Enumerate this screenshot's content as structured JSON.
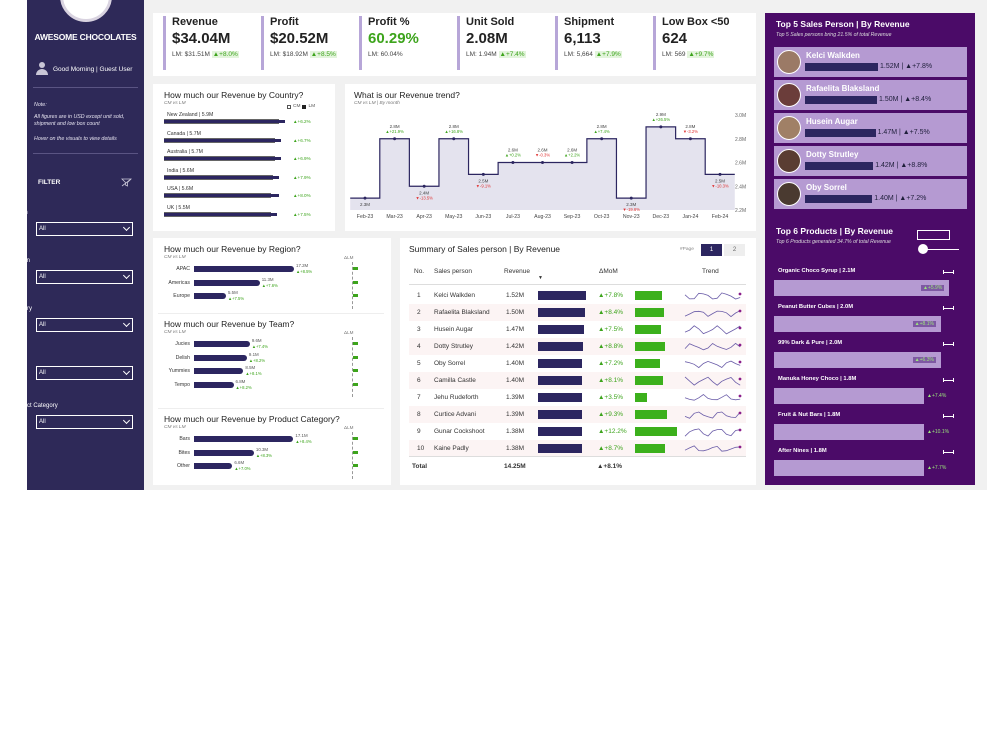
{
  "app": {
    "brand": "AWESOME CHOCOLATES",
    "greeting": "Good Morning | Guest User"
  },
  "sidebar": {
    "note_title": "Note:",
    "note_text": "All figures are in USD except unit sold, shipment and low box count",
    "note_hover": "Hover on the visuals to view details",
    "filter_label": "FILTER",
    "slicers": [
      {
        "label": "Month",
        "value": "All"
      },
      {
        "label": "Region",
        "value": "All"
      },
      {
        "label": "Country",
        "value": "All"
      },
      {
        "label": "Team",
        "value": "All"
      },
      {
        "label": "Product Category",
        "value": "All"
      }
    ]
  },
  "kpis": [
    {
      "title": "Revenue",
      "value": "$34.04M",
      "lm": "LM: $31.51M",
      "delta": "▲+8.0%"
    },
    {
      "title": "Profit",
      "value": "$20.52M",
      "lm": "LM: $18.92M",
      "delta": "▲+8.5%"
    },
    {
      "title": "Profit %",
      "value": "60.29%",
      "lm": "LM: 60.04%",
      "delta": ""
    },
    {
      "title": "Unit Sold",
      "value": "2.08M",
      "lm": "LM: 1.94M",
      "delta": "▲+7.4%"
    },
    {
      "title": "Shipment",
      "value": "6,113",
      "lm": "LM: 5,664",
      "delta": "▲+7.9%"
    },
    {
      "title": "Low Box <50",
      "value": "624",
      "lm": "LM: 569",
      "delta": "▲+9.7%"
    }
  ],
  "country": {
    "title": "How much our Revenue by Country?",
    "subtitle": "CM vs LM",
    "legend_cm": "CM",
    "legend_lm": "LM",
    "rows": [
      {
        "label": "New Zealand | 5.9M",
        "cm": 5.9,
        "lm": 5.6,
        "delta": "▲+6.2%"
      },
      {
        "label": "Canada | 5.7M",
        "cm": 5.7,
        "lm": 5.4,
        "delta": "▲+6.7%"
      },
      {
        "label": "Australia | 5.7M",
        "cm": 5.7,
        "lm": 5.4,
        "delta": "▲+6.9%"
      },
      {
        "label": "India | 5.6M",
        "cm": 5.6,
        "lm": 5.3,
        "delta": "▲+7.9%"
      },
      {
        "label": "USA | 5.6M",
        "cm": 5.6,
        "lm": 5.2,
        "delta": "▲+8.0%"
      },
      {
        "label": "UK | 5.5M",
        "cm": 5.5,
        "lm": 5.2,
        "delta": "▲+7.5%"
      }
    ]
  },
  "trend": {
    "title": "What is our Revenue trend?",
    "subtitle": "CM vs LM | By month",
    "yticks": [
      "3.0M",
      "2.8M",
      "2.6M",
      "2.4M",
      "2.2M"
    ]
  },
  "chart_data": {
    "type": "line",
    "title": "What is our Revenue trend?",
    "x": [
      "Feb-23",
      "Mar-23",
      "Apr-23",
      "May-23",
      "Jun-23",
      "Jul-23",
      "Aug-23",
      "Sep-23",
      "Oct-23",
      "Nov-23",
      "Dec-23",
      "Jan-24",
      "Feb-24"
    ],
    "values": [
      2.3,
      2.8,
      2.4,
      2.8,
      2.5,
      2.6,
      2.6,
      2.6,
      2.8,
      2.3,
      2.9,
      2.8,
      2.5
    ],
    "point_labels": [
      "2.3M",
      "2.8M",
      "2.4M",
      "2.8M",
      "2.5M",
      "2.6M",
      "2.6M",
      "2.6M",
      "2.8M",
      "2.3M",
      "2.9M",
      "2.8M",
      "2.5M"
    ],
    "deltas": [
      "",
      "▲+21.9%",
      "▼-13.5%",
      "▲+16.8%",
      "▼-9.1%",
      "▲+0.2%",
      "▼-0.3%",
      "▲+2.2%",
      "▲+7.4%",
      "▼-19.6%",
      "▲+26.5%",
      "▼-3.2%",
      "▼-10.3%"
    ],
    "ylim": [
      2.2,
      3.0
    ]
  },
  "region": {
    "title": "How much our Revenue by Region?",
    "subtitle": "CM vs LM",
    "delta_header": "ΔLM",
    "rows": [
      {
        "label": "APAC",
        "value_label": "17.2M",
        "value": 17.2,
        "delta": "▲+8.5%"
      },
      {
        "label": "Americas",
        "value_label": "11.3M",
        "value": 11.3,
        "delta": "▲+7.6%"
      },
      {
        "label": "Europe",
        "value_label": "5.5M",
        "value": 5.5,
        "delta": "▲+7.5%"
      }
    ]
  },
  "team": {
    "title": "How much our Revenue by Team?",
    "subtitle": "CM vs LM",
    "delta_header": "ΔLM",
    "rows": [
      {
        "label": "Jucies",
        "value_label": "9.6M",
        "value": 9.6,
        "delta": "▲+7.4%"
      },
      {
        "label": "Delish",
        "value_label": "9.1M",
        "value": 9.1,
        "delta": "▲+8.2%"
      },
      {
        "label": "Yummies",
        "value_label": "8.5M",
        "value": 8.5,
        "delta": "▲+8.1%"
      },
      {
        "label": "Tempo",
        "value_label": "6.8M",
        "value": 6.8,
        "delta": "▲+8.2%"
      }
    ]
  },
  "category": {
    "title": "How much our Revenue by Product Category?",
    "subtitle": "CM vs LM",
    "delta_header": "ΔLM",
    "rows": [
      {
        "label": "Bars",
        "value_label": "17.1M",
        "value": 17.1,
        "delta": "▲+8.4%"
      },
      {
        "label": "Bites",
        "value_label": "10.3M",
        "value": 10.3,
        "delta": "▲+8.3%"
      },
      {
        "label": "Other",
        "value_label": "6.6M",
        "value": 6.6,
        "delta": "▲+7.0%"
      }
    ]
  },
  "summary": {
    "title": "Summary of Sales person | By Revenue",
    "page_label": "#Page",
    "pages": [
      "1",
      "2"
    ],
    "headers": {
      "no": "No.",
      "person": "Sales person",
      "revenue": "Revenue",
      "mom": "ΔMoM",
      "trend": "Trend"
    },
    "rows": [
      {
        "no": "1",
        "name": "Kelci Walkden",
        "revenue": "1.52M",
        "rev": 1.52,
        "mom": "▲+7.8%",
        "m": 7.8
      },
      {
        "no": "2",
        "name": "Rafaelita Blaksland",
        "revenue": "1.50M",
        "rev": 1.5,
        "mom": "▲+8.4%",
        "m": 8.4
      },
      {
        "no": "3",
        "name": "Husein Augar",
        "revenue": "1.47M",
        "rev": 1.47,
        "mom": "▲+7.5%",
        "m": 7.5
      },
      {
        "no": "4",
        "name": "Dotty Strutley",
        "revenue": "1.42M",
        "rev": 1.42,
        "mom": "▲+8.8%",
        "m": 8.8
      },
      {
        "no": "5",
        "name": "Oby Sorrel",
        "revenue": "1.40M",
        "rev": 1.4,
        "mom": "▲+7.2%",
        "m": 7.2
      },
      {
        "no": "6",
        "name": "Camilla Castle",
        "revenue": "1.40M",
        "rev": 1.4,
        "mom": "▲+8.1%",
        "m": 8.1
      },
      {
        "no": "7",
        "name": "Jehu Rudeforth",
        "revenue": "1.39M",
        "rev": 1.39,
        "mom": "▲+3.5%",
        "m": 3.5
      },
      {
        "no": "8",
        "name": "Curtice Advani",
        "revenue": "1.39M",
        "rev": 1.39,
        "mom": "▲+9.3%",
        "m": 9.3
      },
      {
        "no": "9",
        "name": "Gunar Cockshoot",
        "revenue": "1.38M",
        "rev": 1.38,
        "mom": "▲+12.2%",
        "m": 12.2
      },
      {
        "no": "10",
        "name": "Kaine Padly",
        "revenue": "1.38M",
        "rev": 1.38,
        "mom": "▲+8.7%",
        "m": 8.7
      }
    ],
    "total": {
      "label": "Total",
      "revenue": "14.25M",
      "mom": "▲+8.1%"
    }
  },
  "top_sales": {
    "title": "Top 5 Sales Person | By Revenue",
    "subtitle": "Top 5 Sales persons bring 21.5% of total Revenue",
    "items": [
      {
        "name": "Kelci Walkden",
        "value": "1.52M | ▲+7.8%",
        "rev": 1.52
      },
      {
        "name": "Rafaelita Blaksland",
        "value": "1.50M | ▲+8.4%",
        "rev": 1.5
      },
      {
        "name": "Husein Augar",
        "value": "1.47M | ▲+7.5%",
        "rev": 1.47
      },
      {
        "name": "Dotty Strutley",
        "value": "1.42M | ▲+8.8%",
        "rev": 1.42
      },
      {
        "name": "Oby Sorrel",
        "value": "1.40M | ▲+7.2%",
        "rev": 1.4
      }
    ]
  },
  "top_products": {
    "title": "Top 6 Products | By Revenue",
    "subtitle": "Top 6 Products generated 34.7% of total Revenue",
    "items": [
      {
        "label": "Organic Choco Syrup | 2.1M",
        "value": 2.1,
        "delta": "▲+5.9%"
      },
      {
        "label": "Peanut Butter Cubes | 2.0M",
        "value": 2.0,
        "delta": "▲+8.1%"
      },
      {
        "label": "99% Dark & Pure | 2.0M",
        "value": 2.0,
        "delta": "▲+6.3%"
      },
      {
        "label": "Manuka Honey Choco | 1.8M",
        "value": 1.8,
        "delta": "▲+7.4%"
      },
      {
        "label": "Fruit & Nut Bars | 1.8M",
        "value": 1.8,
        "delta": "▲+10.1%"
      },
      {
        "label": "After Nines | 1.8M",
        "value": 1.8,
        "delta": "▲+7.7%"
      }
    ]
  }
}
